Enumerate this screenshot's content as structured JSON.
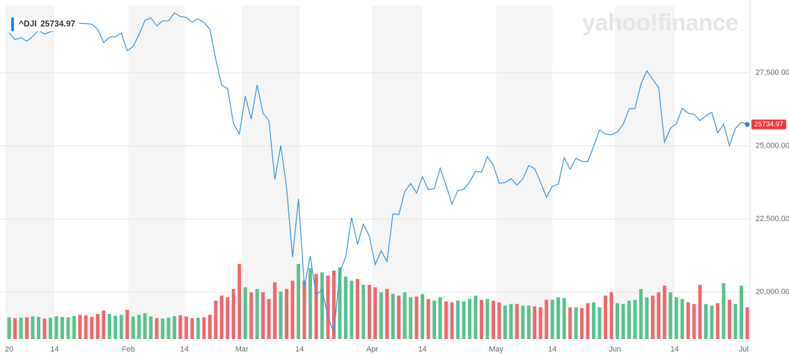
{
  "chart_data": {
    "type": "line",
    "title": "^DJI",
    "watermark": "yahoo!finance",
    "series": [
      {
        "name": "^DJI",
        "color": "#3a98e0",
        "values": [
          28869,
          28635,
          28704,
          28584,
          28746,
          28957,
          28824,
          28908,
          28940,
          29031,
          29298,
          29348,
          29196,
          29186,
          29160,
          28990,
          28536,
          28723,
          28735,
          28860,
          28256,
          28400,
          28808,
          29291,
          29380,
          29103,
          29276,
          29277,
          29551,
          29424,
          29398,
          29233,
          29348,
          29220,
          28992,
          27961,
          27081,
          26957,
          25767,
          25409,
          26703,
          25917,
          27091,
          26121,
          25865,
          23851,
          25018,
          23553,
          21200,
          23186,
          20189,
          21237,
          19899,
          20087,
          19174,
          18592,
          20705,
          21200,
          22552,
          21637,
          22328,
          21917,
          20944,
          21413,
          21053,
          22680,
          22654,
          23434,
          23719,
          23390,
          23950,
          23505,
          23538,
          24242,
          23650,
          23019,
          23475,
          23516,
          23775,
          24134,
          24101,
          24634,
          24346,
          23724,
          23750,
          23883,
          23665,
          23876,
          24331,
          24222,
          23765,
          23248,
          23626,
          23685,
          24598,
          24207,
          24576,
          24475,
          24465,
          24995,
          25548,
          25401,
          25383,
          25475,
          25742,
          26270,
          26282,
          27111,
          27572,
          27273,
          27000,
          25128,
          25606,
          25763,
          26290,
          26120,
          26080,
          25871,
          26025,
          26156,
          25446,
          25745,
          25016,
          25596,
          25813,
          25734.97
        ]
      }
    ],
    "volume": [
      260,
      250,
      255,
      260,
      270,
      265,
      245,
      255,
      275,
      265,
      260,
      275,
      290,
      285,
      265,
      300,
      340,
      300,
      280,
      290,
      350,
      270,
      290,
      310,
      270,
      250,
      245,
      255,
      275,
      285,
      270,
      250,
      255,
      260,
      290,
      460,
      520,
      500,
      600,
      900,
      620,
      560,
      600,
      560,
      480,
      680,
      570,
      600,
      700,
      900,
      700,
      850,
      780,
      800,
      760,
      820,
      860,
      750,
      700,
      720,
      650,
      650,
      620,
      560,
      600,
      540,
      520,
      560,
      500,
      510,
      540,
      480,
      460,
      500,
      450,
      440,
      460,
      450,
      480,
      520,
      470,
      480,
      460,
      440,
      400,
      420,
      420,
      400,
      400,
      390,
      380,
      470,
      470,
      500,
      490,
      380,
      380,
      370,
      430,
      440,
      380,
      520,
      560,
      430,
      420,
      460,
      470,
      600,
      500,
      520,
      560,
      640,
      560,
      500,
      480,
      440,
      420,
      650,
      420,
      400,
      430,
      670,
      470,
      420,
      640,
      380
    ],
    "vlim": [
      0,
      4000
    ],
    "up_color": "#55c48c",
    "down_color": "#f0676b",
    "xlim": [
      -0.6,
      125
    ],
    "xticks": [
      {
        "value": 0,
        "label": "20"
      },
      {
        "value": 7.7,
        "label": "14"
      },
      {
        "value": 20.2,
        "label": "Feb"
      },
      {
        "value": 29.7,
        "label": "14"
      },
      {
        "value": 39.4,
        "label": "Mar"
      },
      {
        "value": 49.2,
        "label": "14"
      },
      {
        "value": 61.5,
        "label": "Apr"
      },
      {
        "value": 70.0,
        "label": "14"
      },
      {
        "value": 82.5,
        "label": "May"
      },
      {
        "value": 92.0,
        "label": "14"
      },
      {
        "value": 102.6,
        "label": "Jun"
      },
      {
        "value": 112.7,
        "label": "14"
      },
      {
        "value": 124.4,
        "label": "Jul"
      }
    ],
    "ylim": [
      18400,
      29800
    ],
    "yticks": [
      {
        "value": 20000,
        "label": "20,000.00"
      },
      {
        "value": 22500,
        "label": "22,500.00"
      },
      {
        "value": 25000,
        "label": "25,000.00"
      },
      {
        "value": 27500,
        "label": "27,500.00"
      }
    ],
    "grid": true
  }
}
